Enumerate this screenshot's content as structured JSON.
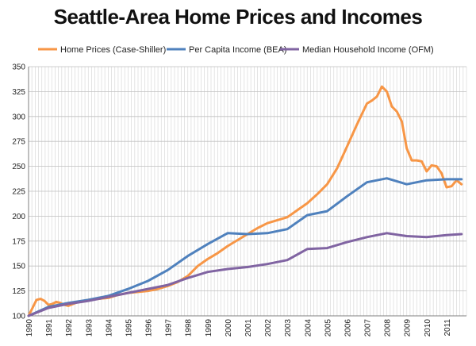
{
  "chart_data": {
    "type": "line",
    "title": "Seattle-Area Home Prices and Incomes",
    "xlabel": "",
    "ylabel": "",
    "ylim": [
      100,
      350
    ],
    "yticks": [
      100,
      125,
      150,
      175,
      200,
      225,
      250,
      275,
      300,
      325,
      350
    ],
    "xlim": [
      1990,
      2012
    ],
    "xticks": [
      "1990",
      "1991",
      "1992",
      "1993",
      "1994",
      "1995",
      "1996",
      "1997",
      "1998",
      "1999",
      "2000",
      "2001",
      "2002",
      "2003",
      "2004",
      "2005",
      "2006",
      "2007",
      "2008",
      "2009",
      "2010",
      "2011"
    ],
    "grid": true,
    "legend": "top",
    "series": [
      {
        "name": "Home Prices (Case-Shiller)",
        "color": "#F79646",
        "x": [
          1990.0,
          1990.2,
          1990.4,
          1990.6,
          1990.8,
          1991.0,
          1991.2,
          1991.4,
          1991.6,
          1991.8,
          1992.0,
          1992.5,
          1993.0,
          1993.5,
          1994.0,
          1994.5,
          1995.0,
          1995.5,
          1996.0,
          1996.5,
          1997.0,
          1997.5,
          1998.0,
          1998.5,
          1999.0,
          1999.5,
          2000.0,
          2000.5,
          2001.0,
          2001.5,
          2002.0,
          2002.5,
          2003.0,
          2003.5,
          2004.0,
          2004.5,
          2005.0,
          2005.5,
          2006.0,
          2006.5,
          2007.0,
          2007.25,
          2007.5,
          2007.75,
          2008.0,
          2008.25,
          2008.5,
          2008.75,
          2009.0,
          2009.25,
          2009.5,
          2009.75,
          2010.0,
          2010.25,
          2010.5,
          2010.75,
          2011.0,
          2011.25,
          2011.5,
          2011.75
        ],
        "values": [
          100,
          108,
          116,
          117,
          115,
          111,
          112,
          114,
          113,
          111,
          110,
          114,
          116,
          117,
          118,
          121,
          123,
          124,
          125,
          127,
          130,
          134,
          140,
          150,
          157,
          163,
          170,
          176,
          182,
          188,
          193,
          196,
          199,
          206,
          213,
          222,
          232,
          248,
          270,
          292,
          313,
          316,
          320,
          330,
          325,
          310,
          305,
          295,
          268,
          256,
          256,
          255,
          245,
          251,
          250,
          243,
          229,
          230,
          236,
          232
        ]
      },
      {
        "name": "Per Capita Income (BEA)",
        "color": "#4F81BD",
        "x": [
          1990,
          1991,
          1992,
          1993,
          1994,
          1995,
          1996,
          1997,
          1998,
          1999,
          2000,
          2001,
          2002,
          2003,
          2004,
          2005,
          2006,
          2007,
          2008,
          2009,
          2010,
          2011,
          2011.75
        ],
        "values": [
          100,
          109,
          113,
          116,
          120,
          127,
          135,
          146,
          160,
          172,
          183,
          182,
          183,
          187,
          201,
          205,
          220,
          234,
          238,
          232,
          236,
          237,
          237
        ]
      },
      {
        "name": "Median Household Income (OFM)",
        "color": "#8064A2",
        "x": [
          1990,
          1991,
          1992,
          1993,
          1994,
          1995,
          1996,
          1997,
          1998,
          1999,
          2000,
          2001,
          2002,
          2003,
          2004,
          2005,
          2006,
          2007,
          2008,
          2009,
          2010,
          2011,
          2011.75
        ],
        "values": [
          100,
          108,
          112,
          115,
          119,
          123,
          127,
          131,
          138,
          144,
          147,
          149,
          152,
          156,
          167,
          168,
          174,
          179,
          183,
          180,
          179,
          181,
          182
        ]
      }
    ]
  }
}
